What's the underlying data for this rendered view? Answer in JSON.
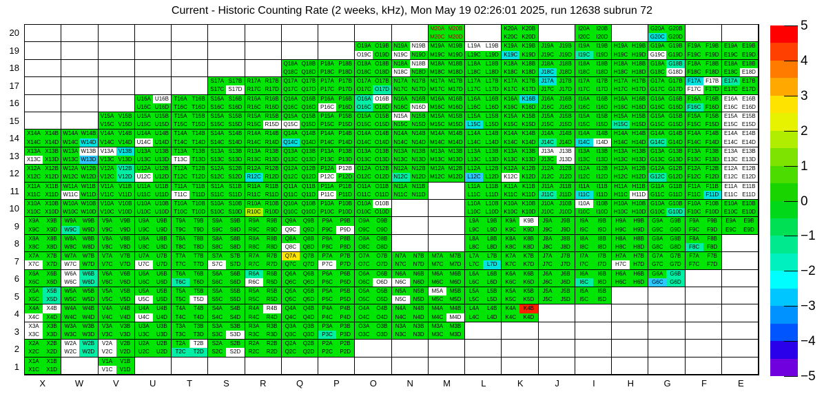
{
  "chart_data": {
    "type": "heatmap",
    "title": "Current - Historic Counting Rate (2 weeks, kHz), Mon May 19 02:26:01 2025, run 12638 subrun 72",
    "columns": [
      "X",
      "W",
      "V",
      "U",
      "T",
      "S",
      "R",
      "Q",
      "P",
      "O",
      "N",
      "M",
      "L",
      "K",
      "J",
      "I",
      "H",
      "G",
      "F",
      "E"
    ],
    "rows": [
      20,
      19,
      18,
      17,
      16,
      15,
      14,
      13,
      12,
      11,
      10,
      9,
      8,
      7,
      6,
      5,
      4,
      3,
      2,
      1
    ],
    "sub_labels": [
      "A",
      "B",
      "C",
      "D"
    ],
    "x_axis_labels": [
      "X",
      "W",
      "V",
      "U",
      "T",
      "S",
      "R",
      "Q",
      "P",
      "O",
      "N",
      "M",
      "L",
      "K",
      "J",
      "I",
      "H",
      "G",
      "F",
      "E"
    ],
    "y_axis_labels": [
      "20",
      "19",
      "18",
      "17",
      "16",
      "15",
      "14",
      "13",
      "12",
      "11",
      "10",
      "9",
      "8",
      "7",
      "6",
      "5",
      "4",
      "3",
      "2",
      "1"
    ],
    "palette": {
      "g": "#00e504",
      "t": "#00efa4",
      "c": "#00e4e0",
      "u": "#2cc8ff",
      "w": "#ffffff",
      "l": "#b6ee00",
      "y": "#ffe600",
      "r": "#ff2100"
    },
    "color_value_map": {
      "g": "≈0",
      "t": "≈-1",
      "c": "≈-1.7",
      "u": "≈-2.3",
      "l": "≈+0.8",
      "y": "≈+2.8",
      "r": "≈+5",
      "w": "out of range / no data"
    },
    "red_text_cells": [
      "M20A",
      "M20B",
      "M20C",
      "M20D"
    ],
    "cells": {
      "20": [
        "",
        "",
        "",
        "",
        "",
        "",
        "",
        "",
        "",
        "",
        "",
        "gggg",
        "",
        "gggg",
        "",
        "gggg",
        "",
        "ggcg",
        "",
        ""
      ],
      "19": [
        "",
        "",
        "",
        "",
        "",
        "",
        "",
        "",
        "",
        "ggwg",
        "gwwg",
        "gggg",
        "wwgg",
        "ggcg",
        "gggg",
        "ggtg",
        "gggg",
        "ggwg",
        "gggg",
        "gggg"
      ],
      "18": [
        "",
        "",
        "",
        "",
        "",
        "",
        "",
        "gggg",
        "gggg",
        "gggg",
        "gwwg",
        "gggg",
        "gggg",
        "gggg",
        "ggcg",
        "gggg",
        "gggg",
        "gtgw",
        "gggg",
        "gggw"
      ],
      "17": [
        "",
        "",
        "",
        "",
        "",
        "gggw",
        "gggg",
        "gggg",
        "gggg",
        "gggt",
        "gggg",
        "gggg",
        "gggg",
        "gggg",
        "cggg",
        "gggg",
        "gggg",
        "gggg",
        "cwwg",
        "tggg"
      ],
      "16": [
        "",
        "",
        "",
        "gwgg",
        "gggg",
        "gggg",
        "gggg",
        "gggg",
        "ggwg",
        "twtg",
        "gggw",
        "gggg",
        "gggg",
        "gcgg",
        "gggg",
        "gggg",
        "gggg",
        "gggg",
        "ggtg",
        "wwww"
      ],
      "15": [
        "",
        "",
        "gggg",
        "gggg",
        "gggg",
        "gggg",
        "gggw",
        "ggwg",
        "gggg",
        "gggg",
        "wggg",
        "gggg",
        "ggcg",
        "gggg",
        "gggg",
        "gggg",
        "ggtg",
        "gggg",
        "gggg",
        "wwww"
      ],
      "14": [
        "gggg",
        "gggc",
        "gggg",
        "ggwg",
        "gggg",
        "gggg",
        "gggg",
        "ggcg",
        "gggg",
        "gggg",
        "gggg",
        "gggg",
        "gggg",
        "gggg",
        "ggtg",
        "ggcw",
        "gggg",
        "ggtg",
        "gggg",
        "wwww"
      ],
      "13": [
        "ggwg",
        "gwgu",
        "wcgg",
        "gggg",
        "ggwg",
        "gggg",
        "gggg",
        "gggg",
        "gggg",
        "gggg",
        "gggg",
        "gggg",
        "gggg",
        "gggg",
        "wwgw",
        "gggg",
        "gggg",
        "gggg",
        "gggg",
        "wwww"
      ],
      "12": [
        "gggg",
        "gggg",
        "gtgt",
        "ggwg",
        "gggg",
        "gggg",
        "ggcg",
        "gggg",
        "gwwg",
        "gggg",
        "ggtg",
        "gggg",
        "ggug",
        "ggwg",
        "gggg",
        "gggg",
        "gggg",
        "ggtg",
        "gggg",
        "wwww"
      ],
      "11": [
        "gggg",
        "ggwg",
        "gggg",
        "gggg",
        "ggwg",
        "gggg",
        "gggg",
        "gggg",
        "ggwg",
        "gggg",
        "gggg",
        "",
        "gggg",
        "gggg",
        "ggtg",
        "ggcg",
        "gggw",
        "gggg",
        "gggc",
        "wwww"
      ],
      "10": [
        "gggg",
        "gggg",
        "gggg",
        "gggg",
        "gggg",
        "gggg",
        "gglg",
        "gggg",
        "gggg",
        "gwgg",
        "",
        "",
        "gggg",
        "gggg",
        "gggg",
        "wggg",
        "gggg",
        "gggt",
        "gggg",
        "gggg"
      ],
      "9": [
        "gggg",
        "ggtg",
        "gggg",
        "gggg",
        "gggg",
        "gggg",
        "gggg",
        "ggwg",
        "gggw",
        "gggg",
        "",
        "",
        "gggg",
        "gwgg",
        "gggg",
        "gggg",
        "gggg",
        "gggg",
        "gggg",
        "gggg"
      ],
      "8": [
        "gggg",
        "gggg",
        "gggg",
        "gggg",
        "gggg",
        "gggg",
        "gggg",
        "ggwg",
        "gggg",
        "gggg",
        "",
        "",
        "gggg",
        "gggg",
        "gggg",
        "gggg",
        "gggg",
        "gggg",
        "ggtg",
        ""
      ],
      "7": [
        "ggwg",
        "ggwg",
        "gggg",
        "ggwg",
        "gggg",
        "ggwg",
        "gggg",
        "yggg",
        "ggwg",
        "gggg",
        "gggg",
        "gggg",
        "gggc",
        "gggg",
        "gggg",
        "gggg",
        "ggwg",
        "gggg",
        "gggg",
        ""
      ],
      "6": [
        "gggg",
        "wtwt",
        "gggg",
        "gggg",
        "ggtg",
        "gggg",
        "tgwg",
        "gggg",
        "gggg",
        "gggw",
        "ggwg",
        "gggg",
        "gggg",
        "gggg",
        "gggg",
        "ggtg",
        "gggg",
        "gtut",
        "",
        ""
      ],
      "5": [
        "gtgt",
        "gggg",
        "gggg",
        "ggwg",
        "gggw",
        "gggg",
        "gggg",
        "gggg",
        "gggg",
        "gggg",
        "ggwg",
        "wggg",
        "gggg",
        "gggg",
        "gggg",
        "gggg",
        "",
        "",
        "",
        ""
      ],
      "4": [
        "gwwg",
        "gggg",
        "gggg",
        "ggwg",
        "gggg",
        "gggg",
        "gwgg",
        "gggg",
        "gggg",
        "gggg",
        "gggg",
        "gggw",
        "gggg",
        "grgg",
        "",
        "",
        "",
        "",
        "",
        ""
      ],
      "3": [
        "wgwg",
        "gggg",
        "gggg",
        "gggg",
        "gggg",
        "gggw",
        "gggg",
        "gggg",
        "ggtg",
        "gggg",
        "gggg",
        "gggg",
        "",
        "",
        "",
        "",
        "",
        "",
        "",
        ""
      ],
      "2": [
        "gggg",
        "wtwt",
        "wgwg",
        "gggg",
        "gwtt",
        "gggw",
        "gggg",
        "gggg",
        "gggg",
        "",
        "",
        "",
        "",
        "",
        "",
        "",
        "",
        "",
        "",
        ""
      ],
      "1": [
        "gggg",
        "",
        "ggwg",
        "",
        "",
        "",
        "",
        "",
        "",
        "",
        "",
        "",
        "",
        "",
        "",
        "",
        "",
        "",
        "",
        ""
      ]
    },
    "colorbar": {
      "min": -5,
      "max": 5,
      "tick_labels": [
        "5",
        "4",
        "3",
        "2",
        "1",
        "0",
        "-1",
        "-2",
        "-3",
        "-4",
        "-5"
      ],
      "band_colors": [
        "#ff0000",
        "#ff4000",
        "#ff7b00",
        "#ffa800",
        "#ffe300",
        "#e6f200",
        "#b0ed00",
        "#7ee300",
        "#4cdc00",
        "#1ad400",
        "#00d819",
        "#00e055",
        "#00e98e",
        "#00f0bf",
        "#00feff",
        "#00c6ff",
        "#0092ff",
        "#0055ff",
        "#2a00ea",
        "#7000dd"
      ]
    },
    "legend_position": "right",
    "grid": true
  }
}
